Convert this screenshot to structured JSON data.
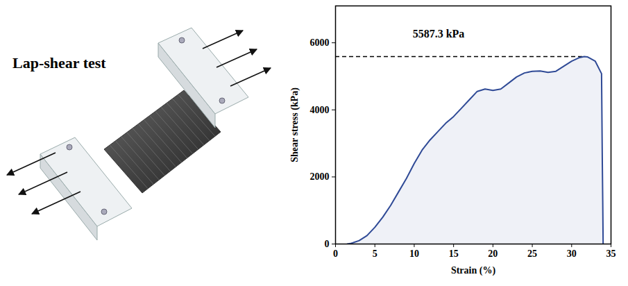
{
  "illustration": {
    "title": "Lap-shear test"
  },
  "chart_data": {
    "type": "line",
    "xlabel": "Strain (%)",
    "ylabel": "Shear stress (kPa)",
    "x": [
      1.5,
      2,
      3,
      4,
      5,
      6,
      7,
      8,
      9,
      10,
      11,
      12,
      13,
      14,
      15,
      16,
      17,
      18,
      19,
      20,
      21,
      22,
      23,
      24,
      25,
      26,
      27,
      28,
      29,
      30,
      31,
      31.6,
      32,
      33,
      33.8,
      33.9,
      33.95,
      34
    ],
    "values": [
      0,
      20,
      100,
      250,
      500,
      800,
      1150,
      1550,
      1950,
      2400,
      2800,
      3100,
      3350,
      3600,
      3800,
      4050,
      4300,
      4550,
      4620,
      4580,
      4620,
      4800,
      4980,
      5100,
      5150,
      5160,
      5120,
      5150,
      5300,
      5450,
      5560,
      5587.3,
      5580,
      5450,
      5080,
      2400,
      1300,
      0
    ],
    "color": "#2f4a96",
    "xlim": [
      0,
      35
    ],
    "xticks": [
      0,
      5,
      10,
      15,
      20,
      25,
      30,
      35
    ],
    "ylim": [
      0,
      7100
    ],
    "yticks": [
      0,
      2000,
      4000,
      6000
    ],
    "annotation": {
      "text": "5587.3 kPa",
      "value": 5587.3
    }
  }
}
